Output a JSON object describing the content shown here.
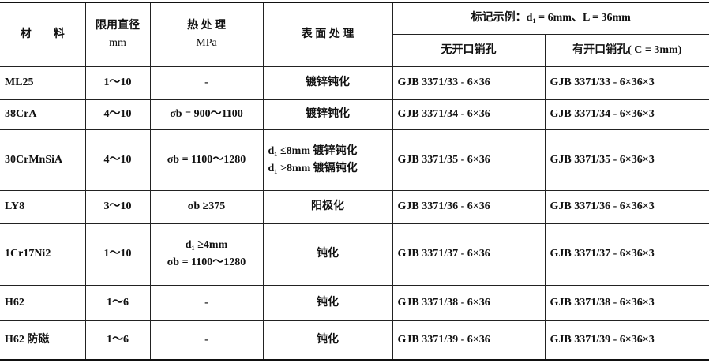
{
  "headers": {
    "material": "材　　料",
    "diameter": "限用直径",
    "diameter_unit": "mm",
    "heat": "热 处 理",
    "heat_unit": "MPa",
    "surface": "表 面 处 理",
    "example": "标记示例：d₁ = 6mm、L = 36mm",
    "no_pin": "无开口销孔",
    "with_pin": "有开口销孔( C = 3mm)"
  },
  "rows": [
    {
      "material": "ML25",
      "diameter": "1～10",
      "heat": [
        "-"
      ],
      "surface": [
        "镀锌钝化"
      ],
      "no_pin": "GJB 3371/33 - 6×36",
      "with_pin": "GJB 3371/33 - 6×36×3"
    },
    {
      "material": "38CrA",
      "diameter": "4～10",
      "heat": [
        "σb = 900～1100"
      ],
      "surface": [
        "镀锌钝化"
      ],
      "no_pin": "GJB 3371/34 - 6×36",
      "with_pin": "GJB 3371/34 - 6×36×3"
    },
    {
      "material": "30CrMnSiA",
      "diameter": "4～10",
      "heat": [
        "σb = 1100～1280"
      ],
      "surface": [
        "d₁ ≤8mm 镀锌钝化",
        "d₁ >8mm 镀镉钝化"
      ],
      "no_pin": "GJB 3371/35 - 6×36",
      "with_pin": "GJB 3371/35 - 6×36×3"
    },
    {
      "material": "LY8",
      "diameter": "3～10",
      "heat": [
        "σb ≥375"
      ],
      "surface": [
        "阳极化"
      ],
      "no_pin": "GJB 3371/36 - 6×36",
      "with_pin": "GJB 3371/36 - 6×36×3"
    },
    {
      "material": "1Cr17Ni2",
      "diameter": "1～10",
      "heat": [
        "d₁ ≥4mm",
        "σb = 1100～1280"
      ],
      "surface": [
        "钝化"
      ],
      "no_pin": "GJB 3371/37 - 6×36",
      "with_pin": "GJB 3371/37 - 6×36×3"
    },
    {
      "material": "H62",
      "diameter": "1～6",
      "heat": [
        "-"
      ],
      "surface": [
        "钝化"
      ],
      "no_pin": "GJB 3371/38 - 6×36",
      "with_pin": "GJB 3371/38 - 6×36×3"
    },
    {
      "material": "H62 防磁",
      "diameter": "1～6",
      "heat": [
        "-"
      ],
      "surface": [
        "钝化"
      ],
      "no_pin": "GJB 3371/39 - 6×36",
      "with_pin": "GJB 3371/39 - 6×36×3"
    }
  ]
}
